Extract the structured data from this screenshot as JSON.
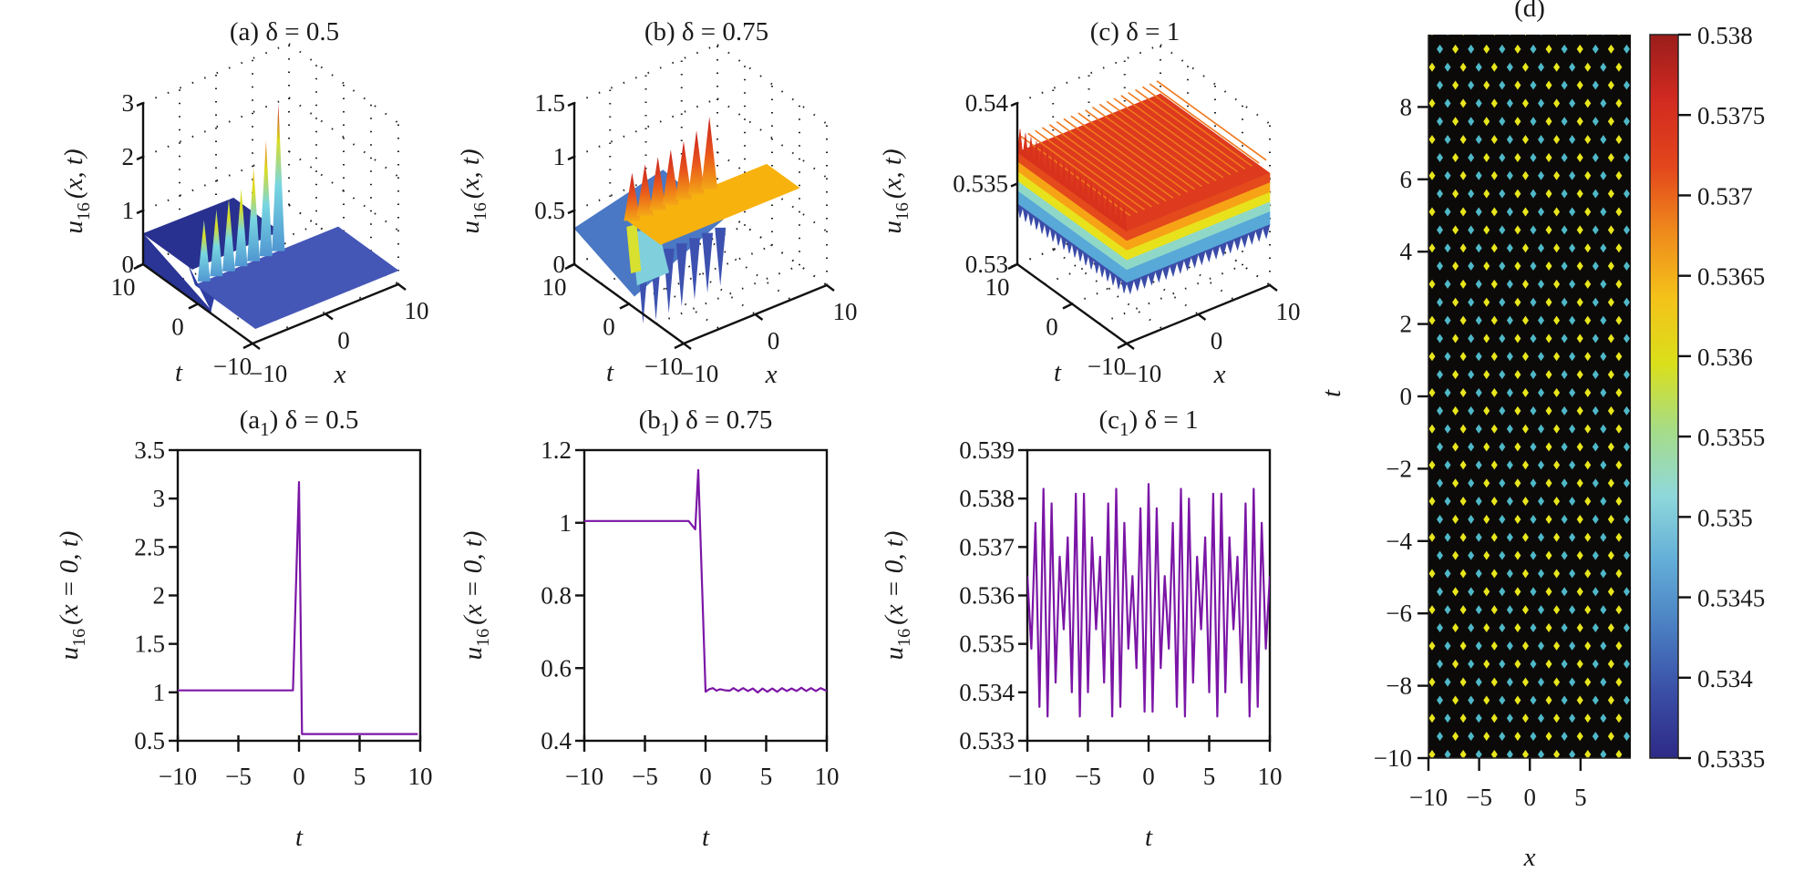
{
  "figure": {
    "panel_count": 7
  },
  "chart_data": [
    {
      "id": "a",
      "type": "surface3d",
      "title": "(a) δ = 0.5",
      "xlabel": "x",
      "ylabel": "t",
      "zlabel": "u16(x, t)",
      "zlabel_main": "u",
      "zlabel_sub": "16",
      "zlabel_rest": "(x, t)",
      "xlim": [
        -10,
        10
      ],
      "tlim": [
        -10,
        10
      ],
      "zlim": [
        0,
        3
      ],
      "xticks": [
        "−10",
        "0",
        "10"
      ],
      "tticks": [
        "−10",
        "0",
        "10"
      ],
      "zticks": [
        "0",
        "1",
        "2",
        "3"
      ],
      "zticks_values": [
        0,
        1,
        2,
        3
      ],
      "description": "Kink-like plateau: u≈1 for t>0 region (dark blue), u≈0.57 elsewhere, with 7 narrow spikes along the step edge rising from ~1.5 to ~3",
      "plateau_high": 1.0,
      "plateau_low": 0.57,
      "spike_heights": [
        1.4,
        1.5,
        1.6,
        1.7,
        2.0,
        2.4,
        3.0
      ],
      "colormap": "jet"
    },
    {
      "id": "b",
      "type": "surface3d",
      "title": "(b) δ = 0.75",
      "xlabel": "x",
      "ylabel": "t",
      "zlabel": "u16(x, t)",
      "zlabel_main": "u",
      "zlabel_sub": "16",
      "zlabel_rest": "(x, t)",
      "xlim": [
        -10,
        10
      ],
      "tlim": [
        -10,
        10
      ],
      "zlim": [
        0,
        1.5
      ],
      "xticks": [
        "−10",
        "0",
        "10"
      ],
      "tticks": [
        "−10",
        "0",
        "10"
      ],
      "zticks": [
        "0",
        "0.5",
        "1",
        "1.5"
      ],
      "zticks_values": [
        0,
        0.5,
        1,
        1.5
      ],
      "description": "Step surface: u≈0.54 on one side (blue), u≈1 on the other (orange) with 7 upward spikes (~1.2–1.4) and 7 downward dips (~0.1) along the transition",
      "plateau_high": 1.0,
      "plateau_low": 0.54,
      "spike_heights": [
        1.15,
        1.18,
        1.2,
        1.22,
        1.25,
        1.3,
        1.38
      ],
      "dip_depths": [
        0.15,
        0.1,
        0.15,
        0.2,
        0.25,
        0.3,
        0.35
      ],
      "colormap": "jet"
    },
    {
      "id": "c",
      "type": "surface3d",
      "title": "(c) δ = 1",
      "xlabel": "x",
      "ylabel": "t",
      "zlabel": "u16(x, t)",
      "zlabel_main": "u",
      "zlabel_sub": "16",
      "zlabel_rest": "(x, t)",
      "xlim": [
        -10,
        10
      ],
      "tlim": [
        -10,
        10
      ],
      "zlim": [
        0.53,
        0.54
      ],
      "xticks": [
        "−10",
        "0",
        "10"
      ],
      "tticks": [
        "−10",
        "0",
        "10"
      ],
      "zticks": [
        "0.53",
        "0.535",
        "0.54"
      ],
      "zticks_values": [
        0.53,
        0.535,
        0.54
      ],
      "description": "Periodic ridged lattice surface oscillating between ~0.5335 and ~0.538 (about 20 ridges)",
      "zmin_data": 0.5335,
      "zmax_data": 0.538,
      "ridge_count": 20,
      "colormap": "jet"
    },
    {
      "id": "d",
      "type": "heatmap",
      "title": "(d)",
      "xlabel": "x",
      "ylabel": "t",
      "xlim": [
        -10,
        10
      ],
      "ylim": [
        -10,
        10
      ],
      "xticks": [
        -10,
        -5,
        0,
        5
      ],
      "xtick_labels": [
        "−10",
        "−5",
        "0",
        "5"
      ],
      "yticks": [
        -10,
        -8,
        -6,
        -4,
        -2,
        0,
        2,
        4,
        6,
        8
      ],
      "ytick_labels": [
        "−10",
        "−8",
        "−6",
        "−4",
        "−2",
        "0",
        "2",
        "4",
        "6",
        "8"
      ],
      "background": "#0c0a08",
      "lattice_cols": 13,
      "lattice_rows": 40,
      "dot_colors": [
        "#e8e61c",
        "#4fb8c8"
      ],
      "colorbar": {
        "range": [
          0.5335,
          0.538
        ],
        "ticks": [
          0.5335,
          0.534,
          0.5345,
          0.535,
          0.5355,
          0.536,
          0.5365,
          0.537,
          0.5375,
          0.538
        ],
        "tick_labels": [
          "0.5335",
          "0.534",
          "0.5345",
          "0.535",
          "0.5355",
          "0.536",
          "0.5365",
          "0.537",
          "0.5375",
          "0.538"
        ],
        "stops": [
          "#2e2a86",
          "#3a4ea6",
          "#4a7fc2",
          "#63aed8",
          "#8fd8da",
          "#a6dc86",
          "#dadf1a",
          "#f4c21a",
          "#ef8a1c",
          "#e3461c",
          "#d22a20",
          "#9a1d1c"
        ]
      }
    },
    {
      "id": "a1",
      "type": "line",
      "title": "(a1) δ = 0.5",
      "title_main": "(a",
      "title_sub": "1",
      "title_rest": ") δ = 0.5",
      "xlabel": "t",
      "ylabel": "u16(x = 0, t)",
      "ylabel_main": "u",
      "ylabel_sub": "16",
      "ylabel_rest": "(x = 0, t)",
      "xlim": [
        -10,
        10
      ],
      "ylim": [
        0.5,
        3.5
      ],
      "xticks": [
        -10,
        -5,
        0,
        5,
        10
      ],
      "xtick_labels": [
        "−10",
        "−5",
        "0",
        "5",
        "10"
      ],
      "yticks": [
        0.5,
        1,
        1.5,
        2,
        2.5,
        3,
        3.5
      ],
      "ytick_labels": [
        "0.5",
        "1",
        "1.5",
        "2",
        "2.5",
        "3",
        "3.5"
      ],
      "color": "#7b16a6",
      "series": [
        {
          "name": "u16(x=0,t)",
          "x": [
            -10,
            -0.5,
            0.0,
            0.25,
            9.8
          ],
          "y": [
            1.02,
            1.02,
            3.17,
            0.57,
            0.57
          ]
        }
      ]
    },
    {
      "id": "b1",
      "type": "line",
      "title": "(b1) δ = 0.75",
      "title_main": "(b",
      "title_sub": "1",
      "title_rest": ") δ = 0.75",
      "xlabel": "t",
      "ylabel": "u16(x = 0, t)",
      "ylabel_main": "u",
      "ylabel_sub": "16",
      "ylabel_rest": "(x = 0, t)",
      "xlim": [
        -10,
        10
      ],
      "ylim": [
        0.4,
        1.2
      ],
      "xticks": [
        -10,
        -5,
        0,
        5,
        10
      ],
      "xtick_labels": [
        "−10",
        "−5",
        "0",
        "5",
        "10"
      ],
      "yticks": [
        0.4,
        0.6,
        0.8,
        1.0,
        1.2
      ],
      "ytick_labels": [
        "0.4",
        "0.6",
        "0.8",
        "1",
        "1.2"
      ],
      "color": "#7b16a6",
      "series": [
        {
          "name": "u16(x=0,t)",
          "x": [
            -10,
            -1.4,
            -0.85,
            -0.6,
            0.0,
            0.3,
            0.6,
            0.9,
            1.2,
            1.6,
            2.0,
            2.3,
            2.7,
            3.1,
            3.5,
            3.9,
            4.3,
            4.7,
            5.1,
            5.5,
            5.9,
            6.3,
            6.7,
            7.1,
            7.5,
            7.9,
            8.3,
            8.7,
            9.1,
            9.5,
            10
          ],
          "y": [
            1.005,
            1.005,
            0.982,
            1.145,
            0.535,
            0.542,
            0.545,
            0.538,
            0.542,
            0.539,
            0.538,
            0.545,
            0.537,
            0.545,
            0.537,
            0.544,
            0.533,
            0.544,
            0.535,
            0.544,
            0.535,
            0.545,
            0.537,
            0.544,
            0.537,
            0.546,
            0.537,
            0.545,
            0.537,
            0.545,
            0.537
          ]
        }
      ]
    },
    {
      "id": "c1",
      "type": "line",
      "title": "(c1) δ = 1",
      "title_main": "(c",
      "title_sub": "1",
      "title_rest": ") δ = 1",
      "xlabel": "t",
      "ylabel": "u16(x = 0, t)",
      "ylabel_main": "u",
      "ylabel_sub": "16",
      "ylabel_rest": "(x = 0, t)",
      "xlim": [
        -10,
        10
      ],
      "ylim": [
        0.533,
        0.539
      ],
      "xticks": [
        -10,
        -5,
        0,
        5,
        10
      ],
      "xtick_labels": [
        "−10",
        "−5",
        "0",
        "5",
        "10"
      ],
      "yticks": [
        0.533,
        0.534,
        0.535,
        0.536,
        0.537,
        0.538,
        0.539
      ],
      "ytick_labels": [
        "0.533",
        "0.534",
        "0.535",
        "0.536",
        "0.537",
        "0.538",
        "0.539"
      ],
      "color": "#7b16a6",
      "series": [
        {
          "name": "u16(x=0,t)",
          "x": [
            -10.0,
            -9.67,
            -9.33,
            -9.0,
            -8.67,
            -8.33,
            -8.0,
            -7.67,
            -7.33,
            -7.0,
            -6.67,
            -6.33,
            -6.0,
            -5.67,
            -5.33,
            -5.0,
            -4.67,
            -4.33,
            -4.0,
            -3.67,
            -3.33,
            -3.0,
            -2.67,
            -2.33,
            -2.0,
            -1.67,
            -1.33,
            -1.0,
            -0.67,
            -0.33,
            0.0,
            0.33,
            0.67,
            1.0,
            1.33,
            1.67,
            2.0,
            2.33,
            2.67,
            3.0,
            3.33,
            3.67,
            4.0,
            4.33,
            4.67,
            5.0,
            5.33,
            5.67,
            6.0,
            6.33,
            6.67,
            7.0,
            7.33,
            7.67,
            8.0,
            8.33,
            8.67,
            9.0,
            9.33,
            9.67,
            10.0
          ],
          "y": [
            0.5364,
            0.5349,
            0.5375,
            0.5337,
            0.5382,
            0.5335,
            0.5379,
            0.5342,
            0.5368,
            0.5353,
            0.5372,
            0.534,
            0.5381,
            0.5335,
            0.5381,
            0.534,
            0.5372,
            0.5353,
            0.5368,
            0.5342,
            0.5379,
            0.5335,
            0.5382,
            0.5337,
            0.5375,
            0.5349,
            0.5364,
            0.5345,
            0.5378,
            0.5336,
            0.5383,
            0.5336,
            0.5378,
            0.5345,
            0.5364,
            0.5349,
            0.5375,
            0.5337,
            0.5382,
            0.5335,
            0.538,
            0.5342,
            0.5368,
            0.5353,
            0.5372,
            0.534,
            0.5381,
            0.5335,
            0.5381,
            0.534,
            0.5372,
            0.5353,
            0.5368,
            0.5342,
            0.5379,
            0.5335,
            0.5382,
            0.5337,
            0.5375,
            0.5349,
            0.5364
          ]
        }
      ]
    }
  ]
}
